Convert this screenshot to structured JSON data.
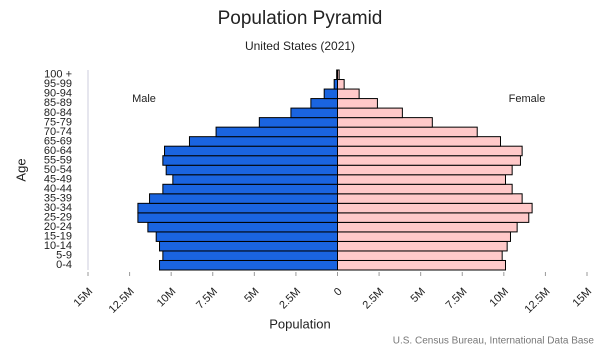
{
  "chart_data": {
    "type": "pyramid",
    "title": "Population Pyramid",
    "subtitle": "United States (2021)",
    "x_label": "Population",
    "y_label": "Age",
    "source": "U.S. Census Bureau, International Data Base",
    "categories": [
      "0-4",
      "5-9",
      "10-14",
      "15-19",
      "20-24",
      "25-29",
      "30-34",
      "35-39",
      "40-44",
      "45-49",
      "50-54",
      "55-59",
      "60-64",
      "65-69",
      "70-74",
      "75-79",
      "80-84",
      "85-89",
      "90-94",
      "95-99",
      "100 +"
    ],
    "series": [
      {
        "name": "Male",
        "color": "#1a64e0",
        "values": [
          -10700000,
          -10500000,
          -10700000,
          -10900000,
          -11400000,
          -12000000,
          -12000000,
          -11300000,
          -10500000,
          -9900000,
          -10300000,
          -10500000,
          -10400000,
          -8900000,
          -7300000,
          -4700000,
          -2800000,
          -1600000,
          -800000,
          -200000,
          -50000
        ]
      },
      {
        "name": "Female",
        "color": "#ffc9c9",
        "values": [
          10100000,
          9900000,
          10200000,
          10400000,
          10800000,
          11500000,
          11700000,
          11100000,
          10500000,
          10100000,
          10500000,
          11000000,
          11100000,
          9800000,
          8400000,
          5700000,
          3900000,
          2400000,
          1300000,
          400000,
          100000
        ]
      }
    ],
    "xlim": [
      -15000000,
      15000000
    ],
    "xticks": [
      {
        "value": -15000000,
        "label": "15M"
      },
      {
        "value": -12500000,
        "label": "12.5M"
      },
      {
        "value": -10000000,
        "label": "10M"
      },
      {
        "value": -7500000,
        "label": "7.5M"
      },
      {
        "value": -5000000,
        "label": "5M"
      },
      {
        "value": -2500000,
        "label": "2.5M"
      },
      0,
      {
        "value": 2500000,
        "label": "2.5M"
      },
      {
        "value": 5000000,
        "label": "5M"
      },
      {
        "value": 7500000,
        "label": "7.5M"
      },
      {
        "value": 10000000,
        "label": "10M"
      },
      {
        "value": 12500000,
        "label": "12.5M"
      },
      {
        "value": 15000000,
        "label": "15M"
      }
    ],
    "grid": false
  }
}
